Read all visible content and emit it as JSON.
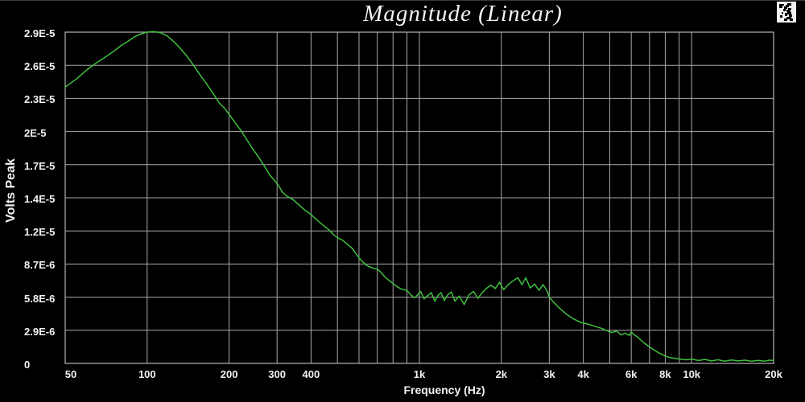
{
  "window": {
    "top_title": "Magnitude (Linear)",
    "corner_icon": "dithered-window-icon"
  },
  "colors": {
    "background": "#000000",
    "grid": "#a9a9a9",
    "border": "#b4b4b4",
    "text": "#f2f2f2",
    "curve": "#3fbf3f"
  },
  "chart_data": {
    "type": "line",
    "title": "Magnitude (Linear)",
    "xlabel": "Frequency (Hz)",
    "ylabel": "Volts Peak",
    "x_scale": "log",
    "xlim": [
      50,
      20000
    ],
    "ylim_volts": [
      0,
      2.9e-05
    ],
    "grid": true,
    "y_division_volts": 2.9e-06,
    "x_gridlines_hz": [
      100,
      200,
      300,
      400,
      500,
      600,
      700,
      800,
      900,
      1000,
      2000,
      3000,
      4000,
      5000,
      6000,
      7000,
      8000,
      9000,
      10000
    ],
    "x_ticks": [
      {
        "hz": 50,
        "label": "50"
      },
      {
        "hz": 100,
        "label": "100"
      },
      {
        "hz": 200,
        "label": "200"
      },
      {
        "hz": 300,
        "label": "300"
      },
      {
        "hz": 400,
        "label": "400"
      },
      {
        "hz": 1000,
        "label": "1k"
      },
      {
        "hz": 2000,
        "label": "2k"
      },
      {
        "hz": 3000,
        "label": "3k"
      },
      {
        "hz": 4000,
        "label": "4k"
      },
      {
        "hz": 6000,
        "label": "6k"
      },
      {
        "hz": 8000,
        "label": "8k"
      },
      {
        "hz": 10000,
        "label": "10k"
      },
      {
        "hz": 20000,
        "label": "20k"
      }
    ],
    "y_ticks": [
      {
        "value_e6": 29.0,
        "label": "2.9E-5"
      },
      {
        "value_e6": 26.1,
        "label": "2.6E-5"
      },
      {
        "value_e6": 23.2,
        "label": "2.3E-5"
      },
      {
        "value_e6": 20.3,
        "label": "2E-5"
      },
      {
        "value_e6": 17.4,
        "label": "1.7E-5"
      },
      {
        "value_e6": 14.5,
        "label": "1.4E-5"
      },
      {
        "value_e6": 11.6,
        "label": "1.2E-5"
      },
      {
        "value_e6": 8.7,
        "label": "8.7E-6"
      },
      {
        "value_e6": 5.8,
        "label": "5.8E-6"
      },
      {
        "value_e6": 2.9,
        "label": "2.9E-6"
      },
      {
        "value_e6": 0,
        "label": "0"
      }
    ],
    "series": [
      {
        "name": "magnitude-trace",
        "color": "#3fbf3f",
        "unit": "volts_peak_x1e-6",
        "points_hz_e6": [
          [
            50,
            24.2
          ],
          [
            55,
            24.9
          ],
          [
            60,
            25.7
          ],
          [
            65,
            26.3
          ],
          [
            70,
            26.8
          ],
          [
            75,
            27.3
          ],
          [
            80,
            27.8
          ],
          [
            85,
            28.2
          ],
          [
            90,
            28.6
          ],
          [
            95,
            28.85
          ],
          [
            100,
            29.0
          ],
          [
            106,
            29.05
          ],
          [
            112,
            28.95
          ],
          [
            118,
            28.7
          ],
          [
            125,
            28.2
          ],
          [
            132,
            27.6
          ],
          [
            140,
            26.9
          ],
          [
            148,
            26.1
          ],
          [
            156,
            25.3
          ],
          [
            165,
            24.5
          ],
          [
            174,
            23.7
          ],
          [
            184,
            22.8
          ],
          [
            193,
            22.3
          ],
          [
            200,
            21.8
          ],
          [
            210,
            21.1
          ],
          [
            221,
            20.4
          ],
          [
            232,
            19.6
          ],
          [
            244,
            18.8
          ],
          [
            256,
            18.1
          ],
          [
            269,
            17.3
          ],
          [
            282,
            16.5
          ],
          [
            295,
            15.95
          ],
          [
            305,
            15.5
          ],
          [
            314,
            15.0
          ],
          [
            324,
            14.7
          ],
          [
            334,
            14.5
          ],
          [
            345,
            14.3
          ],
          [
            356,
            14.0
          ],
          [
            368,
            13.7
          ],
          [
            380,
            13.4
          ],
          [
            397,
            13.1
          ],
          [
            410,
            12.8
          ],
          [
            419,
            12.6
          ],
          [
            430,
            12.35
          ],
          [
            443,
            12.1
          ],
          [
            465,
            11.7
          ],
          [
            485,
            11.25
          ],
          [
            500,
            11.0
          ],
          [
            521,
            10.8
          ],
          [
            545,
            10.4
          ],
          [
            565,
            10.1
          ],
          [
            585,
            9.6
          ],
          [
            600,
            9.25
          ],
          [
            615,
            8.95
          ],
          [
            635,
            8.65
          ],
          [
            655,
            8.45
          ],
          [
            675,
            8.35
          ],
          [
            700,
            8.25
          ],
          [
            720,
            8.0
          ],
          [
            745,
            7.6
          ],
          [
            770,
            7.3
          ],
          [
            800,
            7.0
          ],
          [
            830,
            6.7
          ],
          [
            860,
            6.5
          ],
          [
            900,
            6.4
          ],
          [
            930,
            6.0
          ],
          [
            960,
            5.75
          ],
          [
            985,
            6.0
          ],
          [
            1010,
            6.3
          ],
          [
            1040,
            5.65
          ],
          [
            1075,
            5.95
          ],
          [
            1105,
            6.2
          ],
          [
            1140,
            5.45
          ],
          [
            1170,
            5.95
          ],
          [
            1200,
            6.2
          ],
          [
            1235,
            5.5
          ],
          [
            1270,
            6.0
          ],
          [
            1310,
            6.25
          ],
          [
            1350,
            5.45
          ],
          [
            1400,
            5.9
          ],
          [
            1460,
            5.15
          ],
          [
            1520,
            6.0
          ],
          [
            1580,
            6.3
          ],
          [
            1640,
            5.7
          ],
          [
            1700,
            6.2
          ],
          [
            1760,
            6.55
          ],
          [
            1830,
            6.85
          ],
          [
            1900,
            6.55
          ],
          [
            1970,
            7.1
          ],
          [
            2040,
            6.45
          ],
          [
            2120,
            6.9
          ],
          [
            2200,
            7.2
          ],
          [
            2300,
            7.5
          ],
          [
            2380,
            6.9
          ],
          [
            2460,
            7.5
          ],
          [
            2550,
            6.6
          ],
          [
            2650,
            6.95
          ],
          [
            2750,
            6.4
          ],
          [
            2850,
            6.9
          ],
          [
            2950,
            6.3
          ],
          [
            3000,
            5.8
          ],
          [
            3100,
            5.4
          ],
          [
            3250,
            4.9
          ],
          [
            3450,
            4.35
          ],
          [
            3650,
            3.95
          ],
          [
            3900,
            3.6
          ],
          [
            4150,
            3.45
          ],
          [
            4400,
            3.25
          ],
          [
            4700,
            3.05
          ],
          [
            4900,
            2.85
          ],
          [
            5100,
            2.7
          ],
          [
            5300,
            2.85
          ],
          [
            5500,
            2.5
          ],
          [
            5700,
            2.65
          ],
          [
            5900,
            2.45
          ],
          [
            6000,
            2.75
          ],
          [
            6150,
            2.5
          ],
          [
            6300,
            2.35
          ],
          [
            6600,
            1.9
          ],
          [
            6900,
            1.55
          ],
          [
            7250,
            1.2
          ],
          [
            7600,
            0.9
          ],
          [
            8000,
            0.65
          ],
          [
            8350,
            0.5
          ],
          [
            8900,
            0.4
          ],
          [
            9500,
            0.32
          ],
          [
            10000,
            0.38
          ],
          [
            10600,
            0.25
          ],
          [
            11200,
            0.35
          ],
          [
            11800,
            0.22
          ],
          [
            12500,
            0.32
          ],
          [
            13200,
            0.2
          ],
          [
            14000,
            0.3
          ],
          [
            14800,
            0.22
          ],
          [
            15700,
            0.28
          ],
          [
            16600,
            0.2
          ],
          [
            17500,
            0.26
          ],
          [
            18500,
            0.2
          ],
          [
            19300,
            0.28
          ],
          [
            20000,
            0.25
          ]
        ]
      }
    ]
  }
}
